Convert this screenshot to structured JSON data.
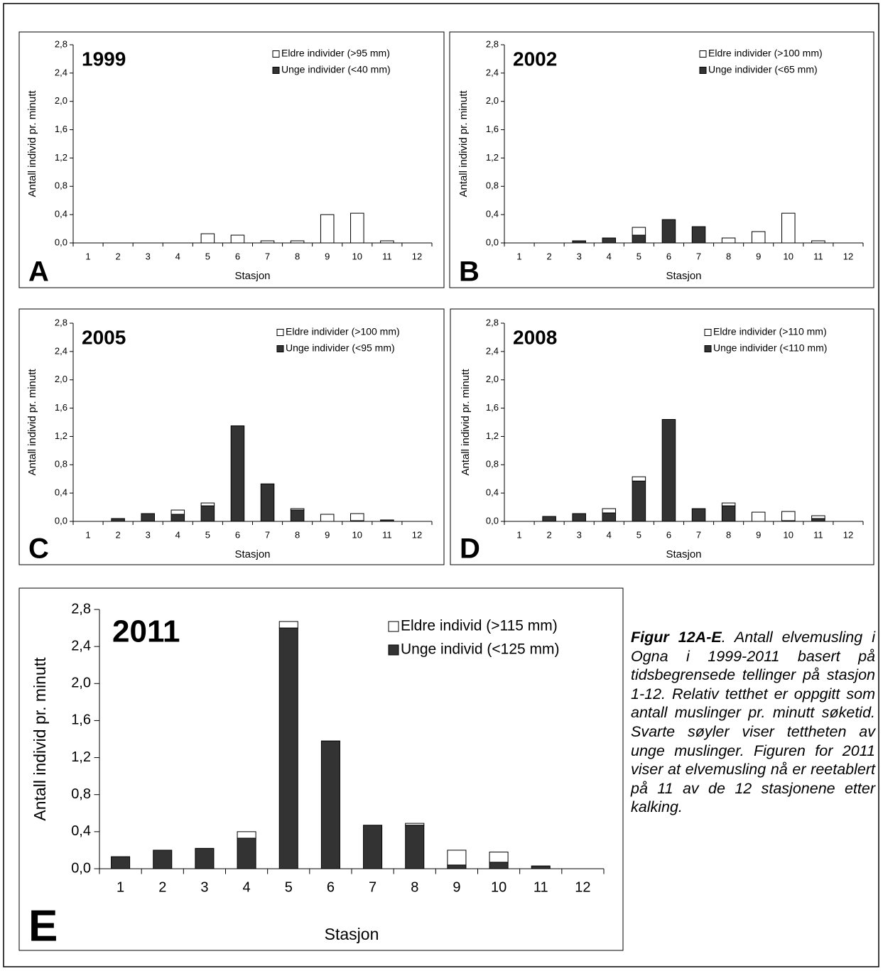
{
  "chart_data": [
    {
      "type": "bar",
      "stacked": true,
      "title": "1999",
      "panel": "A",
      "xlabel": "Stasjon",
      "ylabel": "Antall individ pr. minutt",
      "categories": [
        "1",
        "2",
        "3",
        "4",
        "5",
        "6",
        "7",
        "8",
        "9",
        "10",
        "11",
        "12"
      ],
      "series": [
        {
          "name": "Eldre individer (>95 mm)",
          "color": "#ffffff",
          "values": [
            0,
            0,
            0,
            0,
            0.13,
            0.11,
            0.03,
            0.03,
            0.4,
            0.42,
            0.03,
            0
          ]
        },
        {
          "name": "Unge individer (<40 mm)",
          "color": "#333333",
          "values": [
            0,
            0,
            0,
            0,
            0,
            0,
            0,
            0,
            0,
            0,
            0,
            0
          ]
        }
      ],
      "ylim": [
        0,
        2.8
      ],
      "yticks": [
        {
          "value": 0,
          "label": "0,0"
        },
        {
          "value": 0.4,
          "label": "0,4"
        },
        {
          "value": 0.8,
          "label": "0,8"
        },
        {
          "value": 1.2,
          "label": "1,2"
        },
        {
          "value": 1.6,
          "label": "1,6"
        },
        {
          "value": 2.0,
          "label": "2,0"
        },
        {
          "value": 2.4,
          "label": "2,4"
        },
        {
          "value": 2.8,
          "label": "2,8"
        }
      ]
    },
    {
      "type": "bar",
      "stacked": true,
      "title": "2002",
      "panel": "B",
      "xlabel": "Stasjon",
      "ylabel": "Antall individ pr. minutt",
      "categories": [
        "1",
        "2",
        "3",
        "4",
        "5",
        "6",
        "7",
        "8",
        "9",
        "10",
        "11",
        "12"
      ],
      "series": [
        {
          "name": "Eldre individer (>100 mm)",
          "color": "#ffffff",
          "values": [
            0,
            0,
            0,
            0,
            0.11,
            0,
            0,
            0.07,
            0.16,
            0.42,
            0.03,
            0
          ]
        },
        {
          "name": "Unge individer (<65 mm)",
          "color": "#333333",
          "values": [
            0,
            0,
            0.03,
            0.07,
            0.11,
            0.33,
            0.23,
            0,
            0,
            0,
            0,
            0
          ]
        }
      ],
      "ylim": [
        0,
        2.8
      ],
      "yticks": [
        {
          "value": 0,
          "label": "0,0"
        },
        {
          "value": 0.4,
          "label": "0,4"
        },
        {
          "value": 0.8,
          "label": "0,8"
        },
        {
          "value": 1.2,
          "label": "1,2"
        },
        {
          "value": 1.6,
          "label": "1,6"
        },
        {
          "value": 2.0,
          "label": "2,0"
        },
        {
          "value": 2.4,
          "label": "2,4"
        },
        {
          "value": 2.8,
          "label": "2,8"
        }
      ]
    },
    {
      "type": "bar",
      "stacked": true,
      "title": "2005",
      "panel": "C",
      "xlabel": "Stasjon",
      "ylabel": "Antall individ pr. minutt",
      "categories": [
        "1",
        "2",
        "3",
        "4",
        "5",
        "6",
        "7",
        "8",
        "9",
        "10",
        "11",
        "12"
      ],
      "series": [
        {
          "name": "Eldre individer (>100 mm)",
          "color": "#ffffff",
          "values": [
            0,
            0,
            0,
            0.06,
            0.04,
            0,
            0,
            0.02,
            0.1,
            0.1,
            0,
            0
          ]
        },
        {
          "name": "Unge individer (<95 mm)",
          "color": "#333333",
          "values": [
            0,
            0.04,
            0.11,
            0.1,
            0.22,
            1.35,
            0.53,
            0.16,
            0,
            0.01,
            0.02,
            0
          ]
        }
      ],
      "ylim": [
        0,
        2.8
      ],
      "yticks": [
        {
          "value": 0,
          "label": "0,0"
        },
        {
          "value": 0.4,
          "label": "0,4"
        },
        {
          "value": 0.8,
          "label": "0,8"
        },
        {
          "value": 1.2,
          "label": "1,2"
        },
        {
          "value": 1.6,
          "label": "1,6"
        },
        {
          "value": 2.0,
          "label": "2,0"
        },
        {
          "value": 2.4,
          "label": "2,4"
        },
        {
          "value": 2.8,
          "label": "2,8"
        }
      ]
    },
    {
      "type": "bar",
      "stacked": true,
      "title": "2008",
      "panel": "D",
      "xlabel": "Stasjon",
      "ylabel": "Antall individ pr. minutt",
      "categories": [
        "1",
        "2",
        "3",
        "4",
        "5",
        "6",
        "7",
        "8",
        "9",
        "10",
        "11",
        "12"
      ],
      "series": [
        {
          "name": "Eldre individer (>110 mm)",
          "color": "#ffffff",
          "values": [
            0,
            0,
            0,
            0.06,
            0.06,
            0,
            0,
            0.04,
            0.13,
            0.13,
            0.04,
            0
          ]
        },
        {
          "name": "Unge individer (<110 mm)",
          "color": "#333333",
          "values": [
            0,
            0.07,
            0.11,
            0.12,
            0.57,
            1.44,
            0.18,
            0.22,
            0,
            0.01,
            0.04,
            0
          ]
        }
      ],
      "ylim": [
        0,
        2.8
      ],
      "yticks": [
        {
          "value": 0,
          "label": "0,0"
        },
        {
          "value": 0.4,
          "label": "0,4"
        },
        {
          "value": 0.8,
          "label": "0,8"
        },
        {
          "value": 1.2,
          "label": "1,2"
        },
        {
          "value": 1.6,
          "label": "1,6"
        },
        {
          "value": 2.0,
          "label": "2,0"
        },
        {
          "value": 2.4,
          "label": "2,4"
        },
        {
          "value": 2.8,
          "label": "2,8"
        }
      ]
    },
    {
      "type": "bar",
      "stacked": true,
      "title": "2011",
      "panel": "E",
      "xlabel": "Stasjon",
      "ylabel": "Antall individ pr. minutt",
      "categories": [
        "1",
        "2",
        "3",
        "4",
        "5",
        "6",
        "7",
        "8",
        "9",
        "10",
        "11",
        "12"
      ],
      "series": [
        {
          "name": "Eldre individ (>115 mm)",
          "color": "#ffffff",
          "values": [
            0,
            0,
            0,
            0.07,
            0.07,
            0,
            0,
            0.02,
            0.16,
            0.11,
            0,
            0
          ]
        },
        {
          "name": "Unge individ (<125 mm)",
          "color": "#333333",
          "values": [
            0.13,
            0.2,
            0.22,
            0.33,
            2.6,
            1.38,
            0.47,
            0.47,
            0.04,
            0.07,
            0.03,
            0
          ]
        }
      ],
      "ylim": [
        0,
        2.8
      ],
      "yticks": [
        {
          "value": 0,
          "label": "0,0"
        },
        {
          "value": 0.4,
          "label": "0,4"
        },
        {
          "value": 0.8,
          "label": "0,8"
        },
        {
          "value": 1.2,
          "label": "1,2"
        },
        {
          "value": 1.6,
          "label": "1,6"
        },
        {
          "value": 2.0,
          "label": "2,0"
        },
        {
          "value": 2.4,
          "label": "2,4"
        },
        {
          "value": 2.8,
          "label": "2,8"
        }
      ]
    }
  ],
  "caption": {
    "lead": "Figur 12A-E",
    "text": ". Antall elvemusling i Ogna i 1999-2011 basert på tidsbegrensede tellinger på stasjon 1-12. Relativ tetthet er oppgitt som antall muslinger pr. minutt søketid. Svarte søyler viser tettheten av unge muslinger. Figuren for 2011 viser at elvemusling nå er reetablert på 11 av de 12 stasjonene etter kalking."
  }
}
